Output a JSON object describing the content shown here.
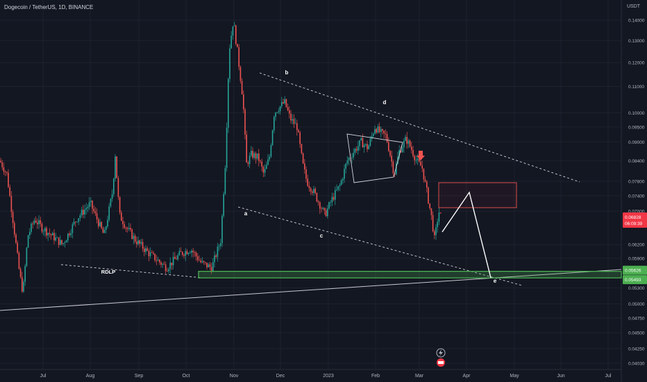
{
  "header": {
    "title": "Dogecoin / TetherUS, 1D, BINANCE",
    "currency": "USDT"
  },
  "colors": {
    "background": "#131722",
    "bull": "#26a69a",
    "bear": "#ef5350",
    "green_zone": "#4caf50",
    "price_tag": "#f23645"
  },
  "chart_data": {
    "type": "candlestick",
    "symbol": "DOGE/USDT",
    "interval": "1D",
    "exchange": "BINANCE",
    "y_scale": "log",
    "ylim": [
      0.039,
      0.148
    ],
    "y_ticks": [
      0.14,
      0.13,
      0.12,
      0.11,
      0.1,
      0.095,
      0.09,
      0.084,
      0.078,
      0.074,
      0.07,
      0.062,
      0.059,
      0.053,
      0.05,
      0.0475,
      0.045,
      0.0425,
      0.0403
    ],
    "x_ticks": [
      "Jul",
      "Aug",
      "Sep",
      "Oct",
      "Nov",
      "Dec",
      "2023",
      "Feb",
      "Mar",
      "Apr",
      "May",
      "Jun",
      "Jul"
    ],
    "current_price": {
      "value": "0.06828",
      "countdown": "06:09:39"
    },
    "zone_labels": {
      "upper": "0.05626",
      "lower": "0.05493"
    },
    "wave_labels": [
      "a",
      "b",
      "c",
      "d",
      "e"
    ],
    "annotation": "RDLP",
    "monthly_closes": [
      {
        "month": "Jun 2022",
        "value": 0.066
      },
      {
        "month": "Jul 2022",
        "value": 0.069
      },
      {
        "month": "Aug 2022",
        "value": 0.063
      },
      {
        "month": "Sep 2022",
        "value": 0.06
      },
      {
        "month": "Oct 2022",
        "value": 0.125
      },
      {
        "month": "Nov 2022",
        "value": 0.08
      },
      {
        "month": "Dec 2022",
        "value": 0.07
      },
      {
        "month": "Jan 2023",
        "value": 0.09
      },
      {
        "month": "Feb 2023",
        "value": 0.077
      },
      {
        "month": "Mar 2023",
        "value": 0.068
      }
    ]
  }
}
